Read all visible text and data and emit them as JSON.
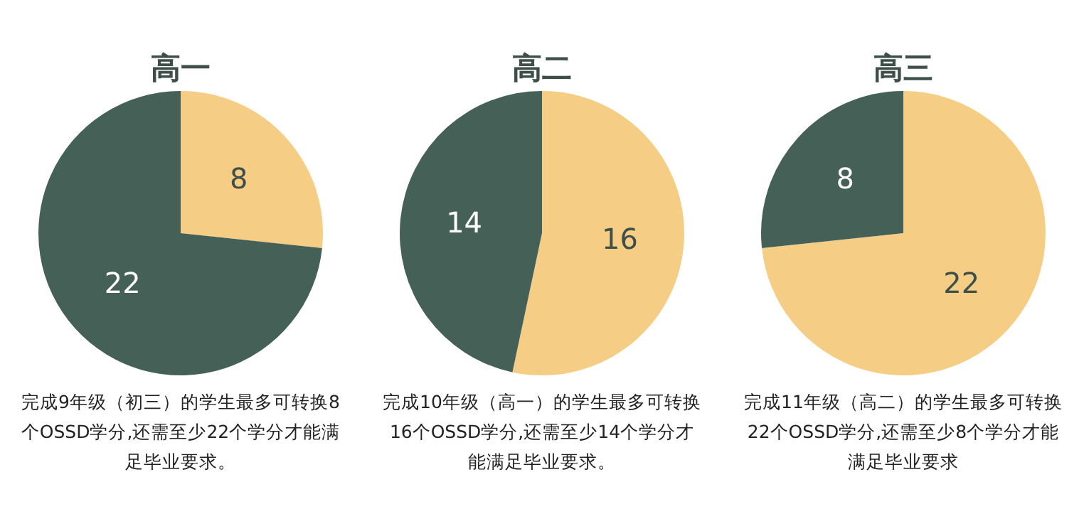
{
  "chart_data": [
    {
      "type": "pie",
      "title": "高一",
      "categories": [
        null,
        null
      ],
      "values": [
        8,
        22
      ],
      "colors": [
        "#f5cd85",
        "#456157"
      ],
      "data_labels": true,
      "legend": false,
      "annotations": [
        "完成9年级（初三）的学生最多可转换8个OSSD学分,还需至少22个学分才能满足毕业要求。"
      ]
    },
    {
      "type": "pie",
      "title": "高二",
      "categories": [
        null,
        null
      ],
      "values": [
        16,
        14
      ],
      "colors": [
        "#f5cd85",
        "#456157"
      ],
      "data_labels": true,
      "legend": false,
      "annotations": [
        "完成10年级（高一）的学生最多可转换16个OSSD学分,还需至少14个学分才能满足毕业要求。"
      ]
    },
    {
      "type": "pie",
      "title": "高三",
      "categories": [
        null,
        null
      ],
      "values": [
        22,
        8
      ],
      "colors": [
        "#f5cd85",
        "#456157"
      ],
      "data_labels": true,
      "legend": false,
      "annotations": [
        "完成11年级（高二）的学生最多可转换22个OSSD学分,还需至少8个学分才能满足毕业要求"
      ]
    }
  ]
}
